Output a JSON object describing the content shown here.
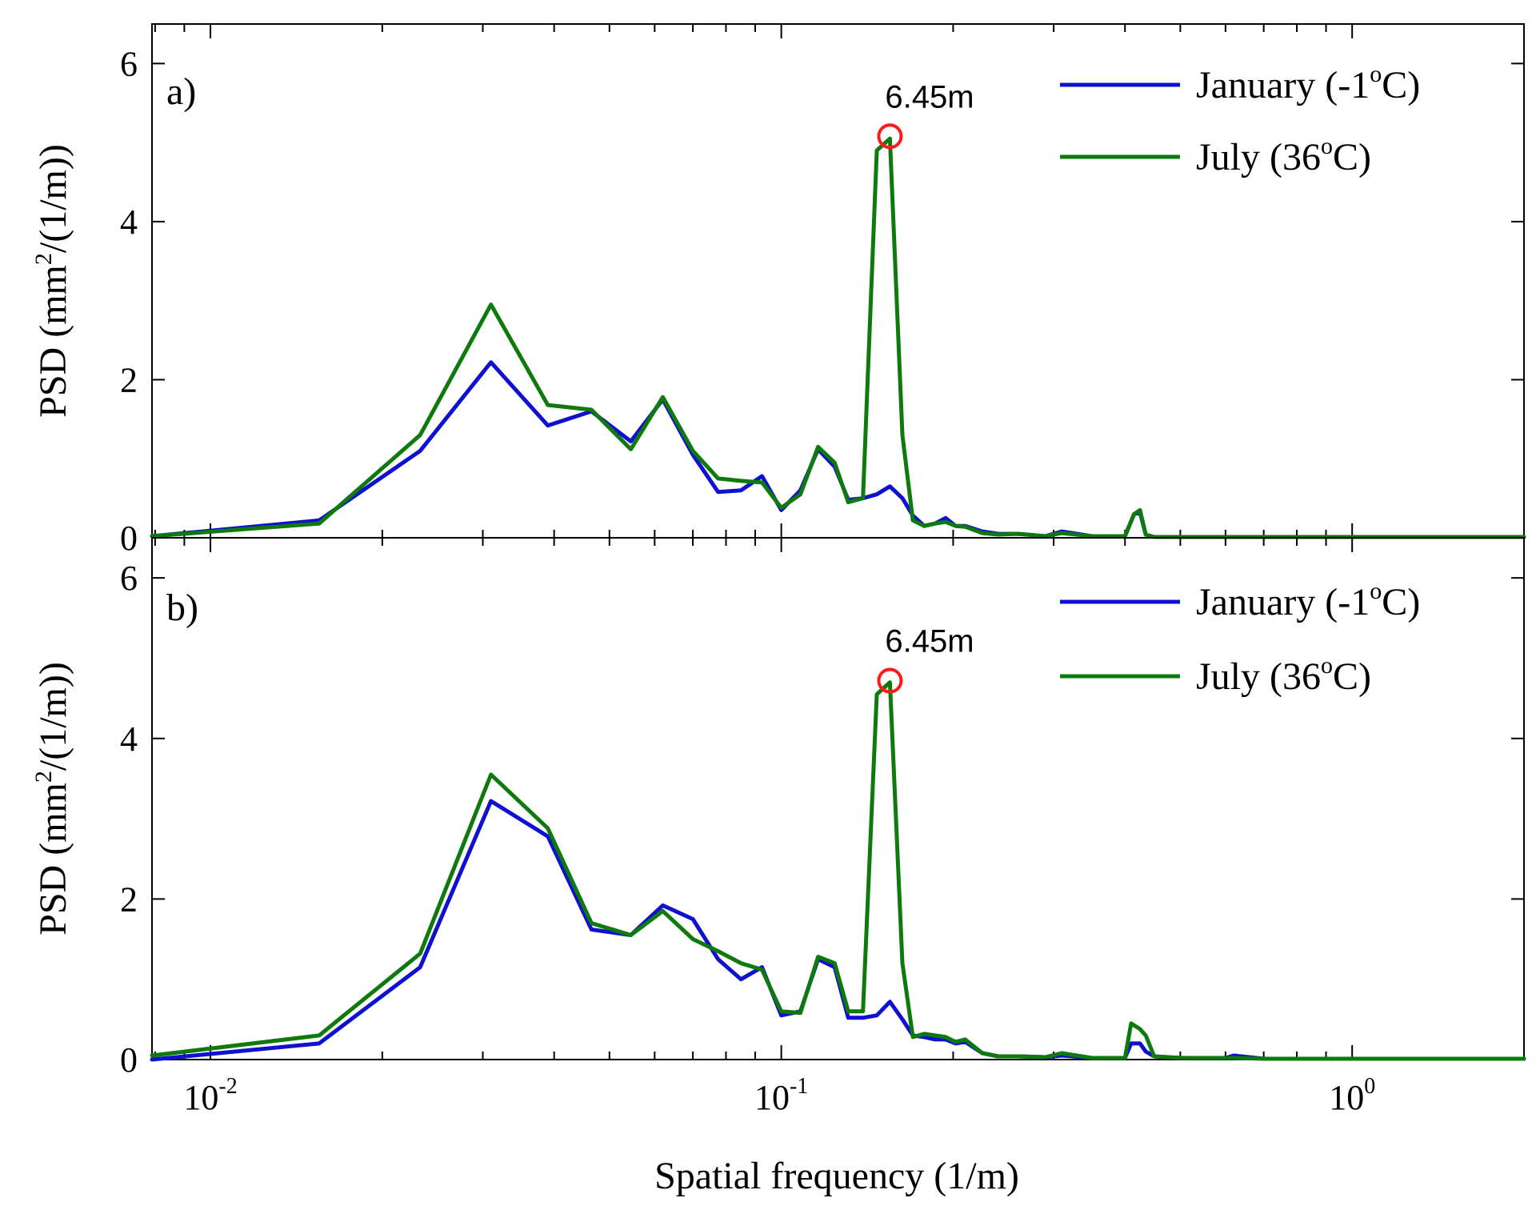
{
  "chart_data": [
    {
      "type": "line",
      "panel_label": "a)",
      "xscale": "log",
      "xlim": [
        0.0079,
        2.0
      ],
      "ylim": [
        0,
        6.5
      ],
      "yticks": [
        0,
        2,
        4,
        6
      ],
      "ylabel": {
        "base": "PSD (mm",
        "sup": "2",
        "tail": "/(1/m))"
      },
      "xlabel": "",
      "legend_position": "top-right",
      "series": [
        {
          "name": "January (-1°C)",
          "legend": {
            "base": "January (-1",
            "sup": "o",
            "tail": "C)"
          },
          "color": "#1010d0",
          "x": [
            0.0079,
            0.0155,
            0.0233,
            0.031,
            0.039,
            0.0465,
            0.0545,
            0.062,
            0.07,
            0.0775,
            0.085,
            0.0925,
            0.1,
            0.108,
            0.116,
            0.124,
            0.131,
            0.139,
            0.147,
            0.155,
            0.163,
            0.17,
            0.178,
            0.186,
            0.194,
            0.202,
            0.21,
            0.225,
            0.24,
            0.26,
            0.29,
            0.31,
            0.35,
            0.4,
            0.415,
            0.425,
            0.435,
            0.45,
            0.5,
            0.7,
            1.0,
            1.5,
            2.0
          ],
          "y": [
            0.02,
            0.22,
            1.1,
            2.22,
            1.42,
            1.6,
            1.22,
            1.75,
            1.05,
            0.58,
            0.6,
            0.78,
            0.35,
            0.6,
            1.12,
            0.9,
            0.48,
            0.5,
            0.55,
            0.65,
            0.5,
            0.28,
            0.15,
            0.18,
            0.25,
            0.15,
            0.15,
            0.08,
            0.05,
            0.05,
            0.02,
            0.08,
            0.02,
            0.02,
            0.3,
            0.32,
            0.04,
            0.01,
            0.01,
            0.01,
            0.01,
            0.01,
            0.01
          ]
        },
        {
          "name": "July (36°C)",
          "legend": {
            "base": "July (36",
            "sup": "o",
            "tail": "C)"
          },
          "color": "#0e7a0e",
          "x": [
            0.0079,
            0.0155,
            0.0233,
            0.031,
            0.039,
            0.0465,
            0.0545,
            0.062,
            0.07,
            0.0775,
            0.085,
            0.0925,
            0.1,
            0.108,
            0.116,
            0.124,
            0.131,
            0.139,
            0.147,
            0.155,
            0.163,
            0.17,
            0.178,
            0.186,
            0.194,
            0.202,
            0.21,
            0.225,
            0.24,
            0.26,
            0.29,
            0.31,
            0.35,
            0.4,
            0.415,
            0.425,
            0.435,
            0.45,
            0.5,
            0.7,
            1.0,
            1.5,
            2.0
          ],
          "y": [
            0.02,
            0.18,
            1.3,
            2.95,
            1.68,
            1.62,
            1.12,
            1.78,
            1.1,
            0.75,
            0.72,
            0.7,
            0.38,
            0.55,
            1.15,
            0.95,
            0.45,
            0.5,
            4.9,
            5.05,
            1.3,
            0.22,
            0.15,
            0.18,
            0.2,
            0.15,
            0.14,
            0.06,
            0.04,
            0.05,
            0.02,
            0.06,
            0.02,
            0.02,
            0.3,
            0.35,
            0.04,
            0.01,
            0.01,
            0.01,
            0.01,
            0.01,
            0.01
          ]
        }
      ],
      "annotation": {
        "label": "6.45m",
        "x": 0.155,
        "y": 5.08,
        "marker": "circle",
        "color": "#ff1a1a"
      }
    },
    {
      "type": "line",
      "panel_label": "b)",
      "xscale": "log",
      "xlim": [
        0.0079,
        2.0
      ],
      "ylim": [
        0,
        6.5
      ],
      "yticks": [
        0,
        2,
        4,
        6
      ],
      "ylabel": {
        "base": "PSD (mm",
        "sup": "2",
        "tail": "/(1/m))"
      },
      "xlabel": "Spatial frequency (1/m)",
      "xticks": [
        {
          "value": 0.01,
          "base": "10",
          "exp": "-2"
        },
        {
          "value": 0.1,
          "base": "10",
          "exp": "-1"
        },
        {
          "value": 1.0,
          "base": "10",
          "exp": "0"
        }
      ],
      "legend_position": "top-right",
      "series": [
        {
          "name": "January (-1°C)",
          "legend": {
            "base": "January (-1",
            "sup": "o",
            "tail": "C)"
          },
          "color": "#1010d0",
          "x": [
            0.0079,
            0.0155,
            0.0233,
            0.031,
            0.039,
            0.0465,
            0.0545,
            0.062,
            0.07,
            0.0775,
            0.085,
            0.0925,
            0.1,
            0.108,
            0.116,
            0.124,
            0.131,
            0.139,
            0.147,
            0.155,
            0.163,
            0.17,
            0.178,
            0.186,
            0.194,
            0.202,
            0.21,
            0.225,
            0.24,
            0.26,
            0.29,
            0.31,
            0.35,
            0.4,
            0.41,
            0.425,
            0.435,
            0.45,
            0.5,
            0.6,
            0.62,
            0.7,
            1.0,
            1.5,
            2.0
          ],
          "y": [
            0.0,
            0.2,
            1.15,
            3.22,
            2.78,
            1.62,
            1.55,
            1.92,
            1.75,
            1.25,
            1.0,
            1.15,
            0.55,
            0.6,
            1.25,
            1.15,
            0.52,
            0.52,
            0.55,
            0.72,
            0.5,
            0.3,
            0.28,
            0.25,
            0.25,
            0.2,
            0.22,
            0.08,
            0.04,
            0.04,
            0.03,
            0.05,
            0.02,
            0.02,
            0.2,
            0.2,
            0.1,
            0.04,
            0.02,
            0.02,
            0.05,
            0.01,
            0.01,
            0.01,
            0.01
          ]
        },
        {
          "name": "July (36°C)",
          "legend": {
            "base": "July (36",
            "sup": "o",
            "tail": "C)"
          },
          "color": "#0e7a0e",
          "x": [
            0.0079,
            0.0155,
            0.0233,
            0.031,
            0.039,
            0.0465,
            0.0545,
            0.062,
            0.07,
            0.0775,
            0.085,
            0.0925,
            0.1,
            0.108,
            0.116,
            0.124,
            0.131,
            0.139,
            0.147,
            0.155,
            0.163,
            0.17,
            0.178,
            0.186,
            0.194,
            0.202,
            0.21,
            0.225,
            0.24,
            0.26,
            0.29,
            0.31,
            0.35,
            0.4,
            0.41,
            0.425,
            0.435,
            0.45,
            0.5,
            0.6,
            0.62,
            0.7,
            1.0,
            1.5,
            2.0
          ],
          "y": [
            0.05,
            0.3,
            1.32,
            3.55,
            2.88,
            1.7,
            1.55,
            1.85,
            1.5,
            1.35,
            1.2,
            1.12,
            0.6,
            0.58,
            1.28,
            1.2,
            0.6,
            0.6,
            4.55,
            4.7,
            1.2,
            0.28,
            0.32,
            0.3,
            0.28,
            0.22,
            0.25,
            0.08,
            0.04,
            0.04,
            0.03,
            0.08,
            0.02,
            0.02,
            0.45,
            0.38,
            0.3,
            0.04,
            0.02,
            0.02,
            0.02,
            0.01,
            0.01,
            0.01,
            0.01
          ]
        }
      ],
      "annotation": {
        "label": "6.45m",
        "x": 0.155,
        "y": 4.72,
        "marker": "circle",
        "color": "#ff1a1a"
      }
    }
  ]
}
